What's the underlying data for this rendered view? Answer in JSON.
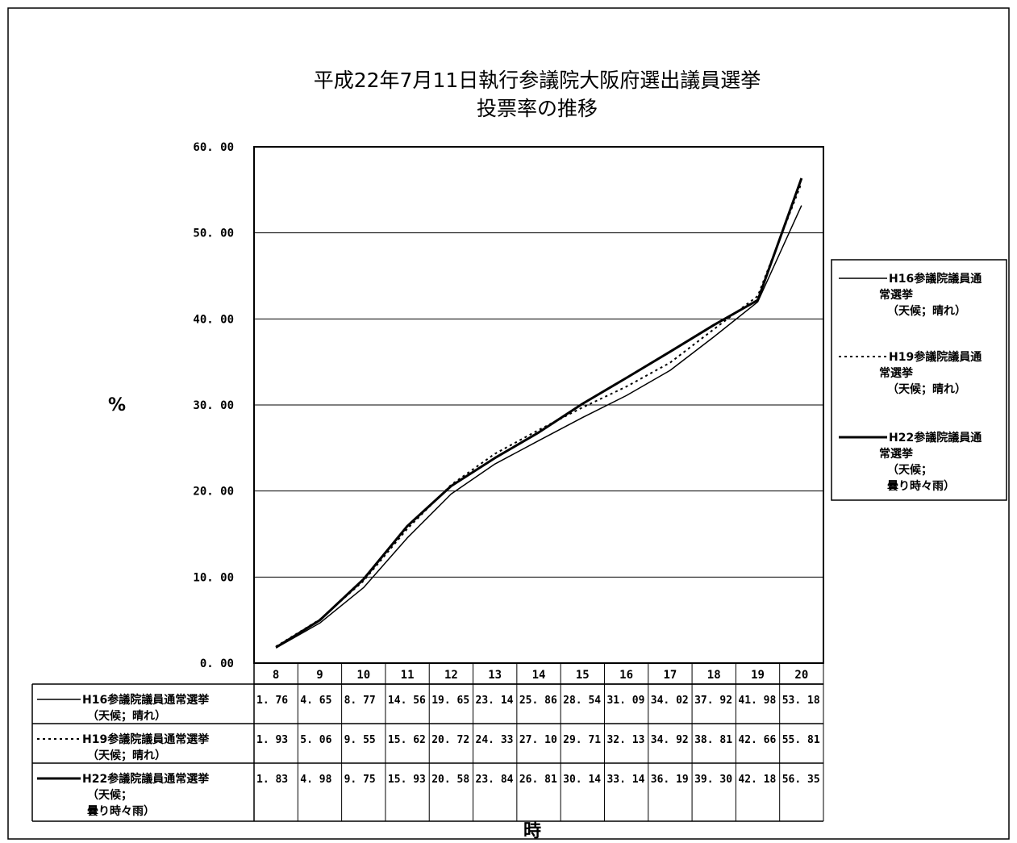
{
  "chart_data": {
    "type": "line",
    "title": "平成22年7月11日執行参議院大阪府選出議員選挙",
    "subtitle": "投票率の推移",
    "ylabel": "%",
    "xlabel": "時",
    "ylim": [
      0,
      60
    ],
    "yticks": [
      "60. 00",
      "50. 00",
      "40. 00",
      "30. 00",
      "20. 00",
      "10. 00",
      "0. 00"
    ],
    "ytick_values": [
      60,
      50,
      40,
      30,
      20,
      10,
      0
    ],
    "grid": true,
    "legend_position": "right",
    "categories": [
      "8",
      "9",
      "10",
      "11",
      "12",
      "13",
      "14",
      "15",
      "16",
      "17",
      "18",
      "19",
      "20"
    ],
    "series": [
      {
        "name": "H16参議院議員通常選挙",
        "legend_lines": [
          "H16参議院議員通",
          "常選挙",
          "（天候；晴れ）"
        ],
        "table_lines": [
          "H16参議院議員通常選挙",
          "（天候；晴れ）"
        ],
        "style": "solid-thin",
        "values": [
          1.76,
          4.65,
          8.77,
          14.56,
          19.65,
          23.14,
          25.86,
          28.54,
          31.09,
          34.02,
          37.92,
          41.98,
          53.18
        ],
        "labels": [
          "1. 76",
          "4. 65",
          "8. 77",
          "14. 56",
          "19. 65",
          "23. 14",
          "25. 86",
          "28. 54",
          "31. 09",
          "34. 02",
          "37. 92",
          "41. 98",
          "53. 18"
        ]
      },
      {
        "name": "H19参議院議員通常選挙",
        "legend_lines": [
          "H19参議院議員通",
          "常選挙",
          "（天候；晴れ）"
        ],
        "table_lines": [
          "H19参議院議員通常選挙",
          "（天候；晴れ）"
        ],
        "style": "dotted",
        "values": [
          1.93,
          5.06,
          9.55,
          15.62,
          20.72,
          24.33,
          27.1,
          29.71,
          32.13,
          34.92,
          38.81,
          42.66,
          55.81
        ],
        "labels": [
          "1. 93",
          "5. 06",
          "9. 55",
          "15. 62",
          "20. 72",
          "24. 33",
          "27. 10",
          "29. 71",
          "32. 13",
          "34. 92",
          "38. 81",
          "42. 66",
          "55. 81"
        ]
      },
      {
        "name": "H22参議院議員通常選挙",
        "legend_lines": [
          "H22参議院議員通",
          "常選挙",
          "（天候；",
          "曇り時々雨）"
        ],
        "table_lines": [
          "H22参議院議員通常選挙",
          "（天候；",
          "曇り時々雨）"
        ],
        "style": "solid-thick",
        "values": [
          1.83,
          4.98,
          9.75,
          15.93,
          20.58,
          23.84,
          26.81,
          30.14,
          33.14,
          36.19,
          39.3,
          42.18,
          56.35
        ],
        "labels": [
          "1. 83",
          "4. 98",
          "9. 75",
          "15. 93",
          "20. 58",
          "23. 84",
          "26. 81",
          "30. 14",
          "33. 14",
          "36. 19",
          "39. 30",
          "42. 18",
          "56. 35"
        ]
      }
    ]
  }
}
